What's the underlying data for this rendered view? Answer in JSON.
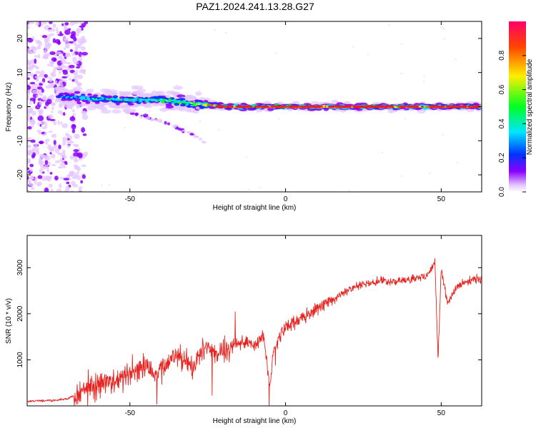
{
  "title": "PAZ1.2024.241.13.28.G27",
  "colors": {
    "snr_line": "#e8221e",
    "band_core": "#e8221e",
    "scatter": "#7a00e6",
    "colormap": [
      "#ffffff",
      "#e4c6ff",
      "#8b00ff",
      "#0033ff",
      "#00e5ff",
      "#00ff22",
      "#ffee00",
      "#ff4400",
      "#ff0066"
    ]
  },
  "chart_data": [
    {
      "type": "heatmap",
      "xlabel": "Height of straight line (km)",
      "ylabel": "Frequency (Hz)",
      "xlim": [
        -83,
        63
      ],
      "ylim": [
        -25,
        25
      ],
      "xticks": [
        -50,
        0,
        50
      ],
      "yticks": [
        -20,
        -10,
        0,
        10,
        20
      ],
      "ridge": {
        "x": [
          -73,
          -65,
          -55,
          -50,
          -45,
          -40,
          -35,
          -30,
          -25,
          -20,
          -10,
          0,
          10,
          20,
          30,
          40,
          50,
          63
        ],
        "freq_hz": [
          3.0,
          2.5,
          2.0,
          2.0,
          2.0,
          2.0,
          1.5,
          1.0,
          0.5,
          0.0,
          0.0,
          0.0,
          0.0,
          0.0,
          0.0,
          0.0,
          0.0,
          0.0
        ],
        "amplitude": [
          0.4,
          0.5,
          0.5,
          0.55,
          0.55,
          0.6,
          0.6,
          0.65,
          0.7,
          0.75,
          0.8,
          0.9,
          0.85,
          0.85,
          0.9,
          0.85,
          0.8,
          0.8
        ]
      },
      "secondary_branch": {
        "x": [
          -52,
          -45,
          -38,
          -30,
          -26
        ],
        "freq_hz": [
          -1,
          -3,
          -5,
          -8,
          -10.5
        ]
      },
      "noise_region_x": [
        -83,
        -65
      ],
      "colorbar": {
        "label": "Normalized spectral amplitude",
        "range": [
          0,
          1
        ],
        "ticks": [
          "0.0",
          "0.2",
          "0.4",
          "0.6",
          "0.8"
        ]
      }
    },
    {
      "type": "line",
      "xlabel": "Height of straight line (km)",
      "ylabel": "SNR (10 * v/v)",
      "xlim": [
        -83,
        63
      ],
      "ylim": [
        0,
        3700
      ],
      "xticks": [
        -50,
        0,
        50
      ],
      "yticks": [
        1000,
        2000,
        3000
      ],
      "x": [
        -83,
        -75,
        -70,
        -65,
        -60,
        -55,
        -50,
        -45,
        -42,
        -40,
        -35,
        -30,
        -25,
        -22,
        -18,
        -15,
        -10,
        -7,
        -5,
        -4,
        -2,
        0,
        5,
        10,
        15,
        20,
        25,
        30,
        35,
        40,
        45,
        48,
        49,
        50,
        52,
        55,
        60,
        63
      ],
      "y": [
        100,
        120,
        150,
        330,
        450,
        550,
        700,
        900,
        650,
        800,
        1150,
        850,
        1300,
        1100,
        1250,
        1400,
        1350,
        1500,
        400,
        1100,
        1500,
        1700,
        1900,
        2100,
        2300,
        2500,
        2650,
        2700,
        2700,
        2750,
        2800,
        3100,
        1000,
        3000,
        2200,
        2600,
        2750,
        2750
      ]
    }
  ]
}
